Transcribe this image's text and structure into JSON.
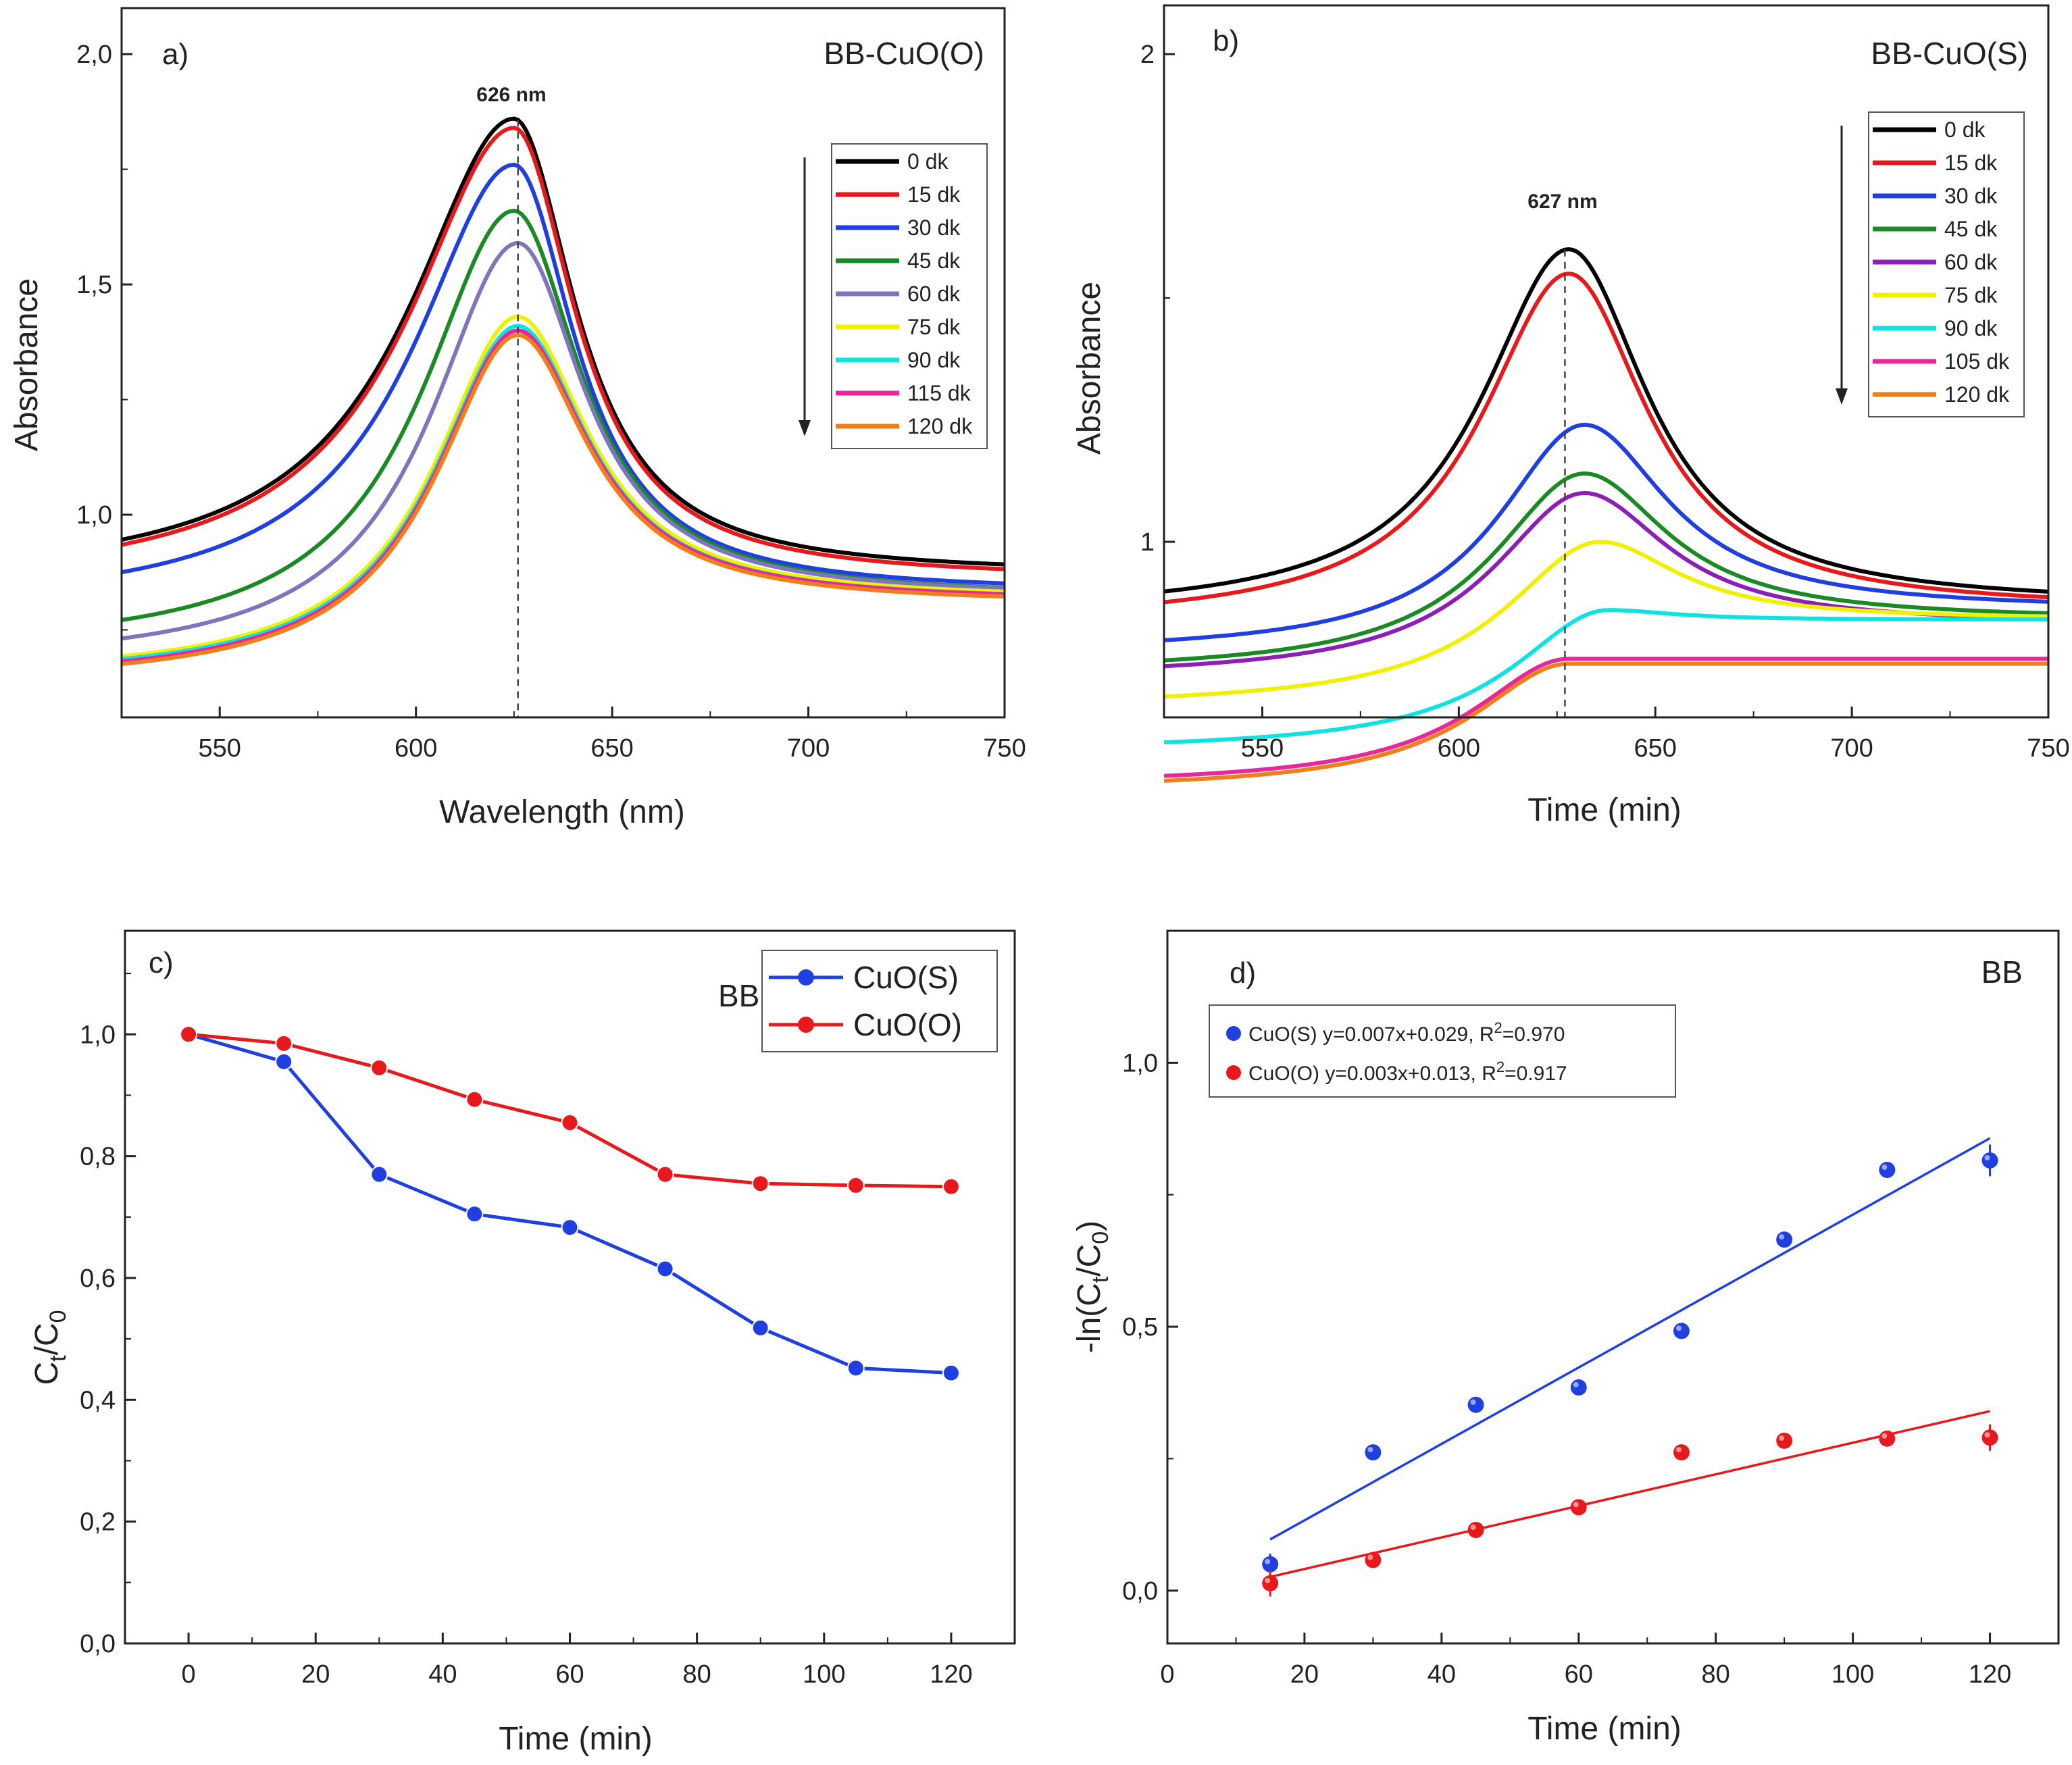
{
  "chart_data": [
    {
      "panel": "a)",
      "type": "line",
      "tag": "BB-CuO(O)",
      "xlabel": "Wavelength (nm)",
      "ylabel": "Absorbance",
      "xlim": [
        525,
        750
      ],
      "ylim": [
        0.56,
        2.1
      ],
      "x_ticks": [
        550,
        600,
        650,
        700,
        750
      ],
      "y_ticks": [
        1.0,
        1.5,
        2.0
      ],
      "y_tick_labels": [
        "1,0",
        "1,5",
        "2,0"
      ],
      "peak_x": 626,
      "peak_label": "626 nm",
      "legend_position": "top-right",
      "series": [
        {
          "name": "0 dk",
          "color": "#000000",
          "peak_pos": 625,
          "peak": 1.86,
          "base_left": 0.85,
          "base_right": 0.87,
          "width_left": 48,
          "width_right": 28
        },
        {
          "name": "15 dk",
          "color": "#e8191c",
          "peak_pos": 625,
          "peak": 1.84,
          "base_left": 0.84,
          "base_right": 0.86,
          "width_left": 48,
          "width_right": 28
        },
        {
          "name": "30 dk",
          "color": "#1f3fe0",
          "peak_pos": 625,
          "peak": 1.76,
          "base_left": 0.79,
          "base_right": 0.83,
          "width_left": 46,
          "width_right": 28
        },
        {
          "name": "45 dk",
          "color": "#1b8a24",
          "peak_pos": 625,
          "peak": 1.66,
          "base_left": 0.7,
          "base_right": 0.82,
          "width_left": 42,
          "width_right": 30
        },
        {
          "name": "60 dk",
          "color": "#7f75bd",
          "peak_pos": 626,
          "peak": 1.59,
          "base_left": 0.67,
          "base_right": 0.82,
          "width_left": 40,
          "width_right": 30
        },
        {
          "name": "75 dk",
          "color": "#f0f000",
          "peak_pos": 626,
          "peak": 1.43,
          "base_left": 0.645,
          "base_right": 0.815,
          "width_left": 38,
          "width_right": 32
        },
        {
          "name": "90 dk",
          "color": "#10e2e2",
          "peak_pos": 626,
          "peak": 1.41,
          "base_left": 0.64,
          "base_right": 0.81,
          "width_left": 38,
          "width_right": 32
        },
        {
          "name": "115 dk",
          "color": "#e8289a",
          "peak_pos": 626,
          "peak": 1.4,
          "base_left": 0.635,
          "base_right": 0.81,
          "width_left": 38,
          "width_right": 32
        },
        {
          "name": "120 dk",
          "color": "#f07f1a",
          "peak_pos": 626,
          "peak": 1.39,
          "base_left": 0.63,
          "base_right": 0.805,
          "width_left": 38,
          "width_right": 32
        }
      ]
    },
    {
      "panel": "b)",
      "type": "line",
      "tag": "BB-CuO(S)",
      "xlabel": "Time (min)",
      "ylabel": "Absorbance",
      "xlim": [
        525,
        750
      ],
      "ylim": [
        0.64,
        2.1
      ],
      "x_ticks": [
        550,
        600,
        650,
        700,
        750
      ],
      "y_ticks": [
        1,
        2
      ],
      "y_tick_labels": [
        "1",
        "2"
      ],
      "peak_x": 627,
      "peak_label": "627 nm",
      "legend_position": "top-right",
      "series": [
        {
          "name": "0 dk",
          "color": "#000000",
          "peak_pos": 628,
          "peak": 1.6,
          "base_left": 0.85,
          "base_right": 0.87,
          "width_left": 40,
          "width_right": 36
        },
        {
          "name": "15 dk",
          "color": "#e8191c",
          "peak_pos": 628,
          "peak": 1.55,
          "base_left": 0.83,
          "base_right": 0.86,
          "width_left": 40,
          "width_right": 36
        },
        {
          "name": "30 dk",
          "color": "#1f3fe0",
          "peak_pos": 632,
          "peak": 1.24,
          "base_left": 0.77,
          "base_right": 0.86,
          "width_left": 40,
          "width_right": 38
        },
        {
          "name": "45 dk",
          "color": "#1b8a24",
          "peak_pos": 632,
          "peak": 1.14,
          "base_left": 0.73,
          "base_right": 0.84,
          "width_left": 42,
          "width_right": 38
        },
        {
          "name": "60 dk",
          "color": "#8c1fb8",
          "peak_pos": 632,
          "peak": 1.1,
          "base_left": 0.72,
          "base_right": 0.83,
          "width_left": 42,
          "width_right": 38
        },
        {
          "name": "75 dk",
          "color": "#f0f000",
          "peak_pos": 636,
          "peak": 1.0,
          "base_left": 0.66,
          "base_right": 0.84,
          "width_left": 44,
          "width_right": 36
        },
        {
          "name": "90 dk",
          "color": "#10e2e2",
          "peak_pos": 638,
          "peak": 0.86,
          "base_left": 0.57,
          "base_right": 0.84,
          "width_left": 44,
          "width_right": 30
        },
        {
          "name": "105 dk",
          "color": "#e8289a",
          "peak_pos": 628,
          "peak": 0.76,
          "base_left": 0.5,
          "base_right": 0.76,
          "width_left": 44,
          "width_right": 34
        },
        {
          "name": "120 dk",
          "color": "#f07f1a",
          "peak_pos": 628,
          "peak": 0.75,
          "base_left": 0.49,
          "base_right": 0.75,
          "width_left": 44,
          "width_right": 34
        }
      ]
    },
    {
      "panel": "c)",
      "type": "line",
      "tag": "BB",
      "xlabel": "Time (min)",
      "ylabel": "C",
      "ylabel_sub1": "t",
      "ylabel_mid": "/C",
      "ylabel_sub2": "0",
      "xlim": [
        -10,
        130
      ],
      "ylim": [
        0.0,
        1.17
      ],
      "x_ticks": [
        0,
        20,
        40,
        60,
        80,
        100,
        120
      ],
      "y_ticks": [
        0.0,
        0.2,
        0.4,
        0.6,
        0.8,
        1.0
      ],
      "y_tick_labels": [
        "0,0",
        "0,2",
        "0,4",
        "0,6",
        "0,8",
        "1,0"
      ],
      "legend_position": "top-right",
      "x": [
        0,
        15,
        30,
        45,
        60,
        75,
        90,
        105,
        120
      ],
      "series": [
        {
          "name": "CuO(S)",
          "color": "#1f3fe0",
          "values": [
            1.0,
            0.955,
            0.77,
            0.705,
            0.683,
            0.615,
            0.518,
            0.452,
            0.444
          ]
        },
        {
          "name": "CuO(O)",
          "color": "#e8191c",
          "values": [
            1.0,
            0.985,
            0.945,
            0.893,
            0.855,
            0.77,
            0.755,
            0.752,
            0.75
          ]
        }
      ]
    },
    {
      "panel": "d)",
      "type": "scatter",
      "tag": "BB",
      "xlabel": "Time (min)",
      "ylabel": "-ln(C",
      "ylabel_sub1": "t",
      "ylabel_mid": "/C",
      "ylabel_sub2": "0",
      "ylabel_end": ")",
      "xlim": [
        0,
        130
      ],
      "ylim": [
        -0.1,
        1.25
      ],
      "x_ticks": [
        0,
        20,
        40,
        60,
        80,
        100,
        120
      ],
      "y_ticks": [
        0.0,
        0.5,
        1.0
      ],
      "y_tick_labels": [
        "0,0",
        "0,5",
        "1,0"
      ],
      "legend_position": "top-left",
      "x": [
        15,
        30,
        45,
        60,
        75,
        90,
        105,
        120
      ],
      "series": [
        {
          "name": "CuO(S)",
          "color": "#1f3fe0",
          "legend_label_a": "CuO(S) y=0.007x+0.029, R",
          "legend_label_b": "=0.970",
          "values": [
            0.05,
            0.262,
            0.352,
            0.385,
            0.492,
            0.665,
            0.797,
            0.815
          ],
          "errors": [
            0.02,
            0.01,
            0.01,
            0.01,
            0.01,
            0.01,
            0.01,
            0.03
          ],
          "fit": {
            "x": [
              15,
              120
            ],
            "y": [
              0.097,
              0.857
            ]
          }
        },
        {
          "name": "CuO(O)",
          "color": "#e8191c",
          "legend_label_a": "CuO(O) y=0.003x+0.013, R",
          "legend_label_b": "=0.917",
          "values": [
            0.014,
            0.058,
            0.115,
            0.158,
            0.262,
            0.284,
            0.288,
            0.29
          ],
          "errors": [
            0.025,
            0.01,
            0.01,
            0.01,
            0.01,
            0.01,
            0.01,
            0.025
          ],
          "fit": {
            "x": [
              15,
              120
            ],
            "y": [
              0.026,
              0.34
            ]
          }
        }
      ],
      "legend_superscript": "2"
    }
  ]
}
